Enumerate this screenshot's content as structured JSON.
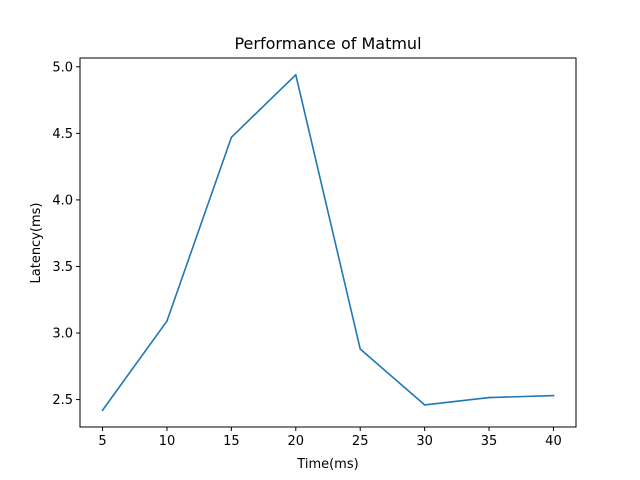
{
  "chart_data": {
    "type": "line",
    "title": "Performance of Matmul",
    "xlabel": "Time(ms)",
    "ylabel": "Latency(ms)",
    "x": [
      5,
      10,
      15,
      20,
      25,
      30,
      35,
      40
    ],
    "series": [
      {
        "values": [
          2.42,
          3.09,
          4.47,
          4.94,
          2.88,
          2.46,
          2.515,
          2.53
        ]
      }
    ],
    "xticks": [
      "5",
      "10",
      "15",
      "20",
      "25",
      "30",
      "35",
      "40"
    ],
    "yticks": [
      "2.5",
      "3.0",
      "3.5",
      "4.0",
      "4.5",
      "5.0"
    ],
    "xlim": [
      3.25,
      41.75
    ],
    "ylim": [
      2.294,
      5.066
    ],
    "grid": false,
    "colors": {
      "series": "#1f77b4",
      "axes": "#000000"
    }
  }
}
